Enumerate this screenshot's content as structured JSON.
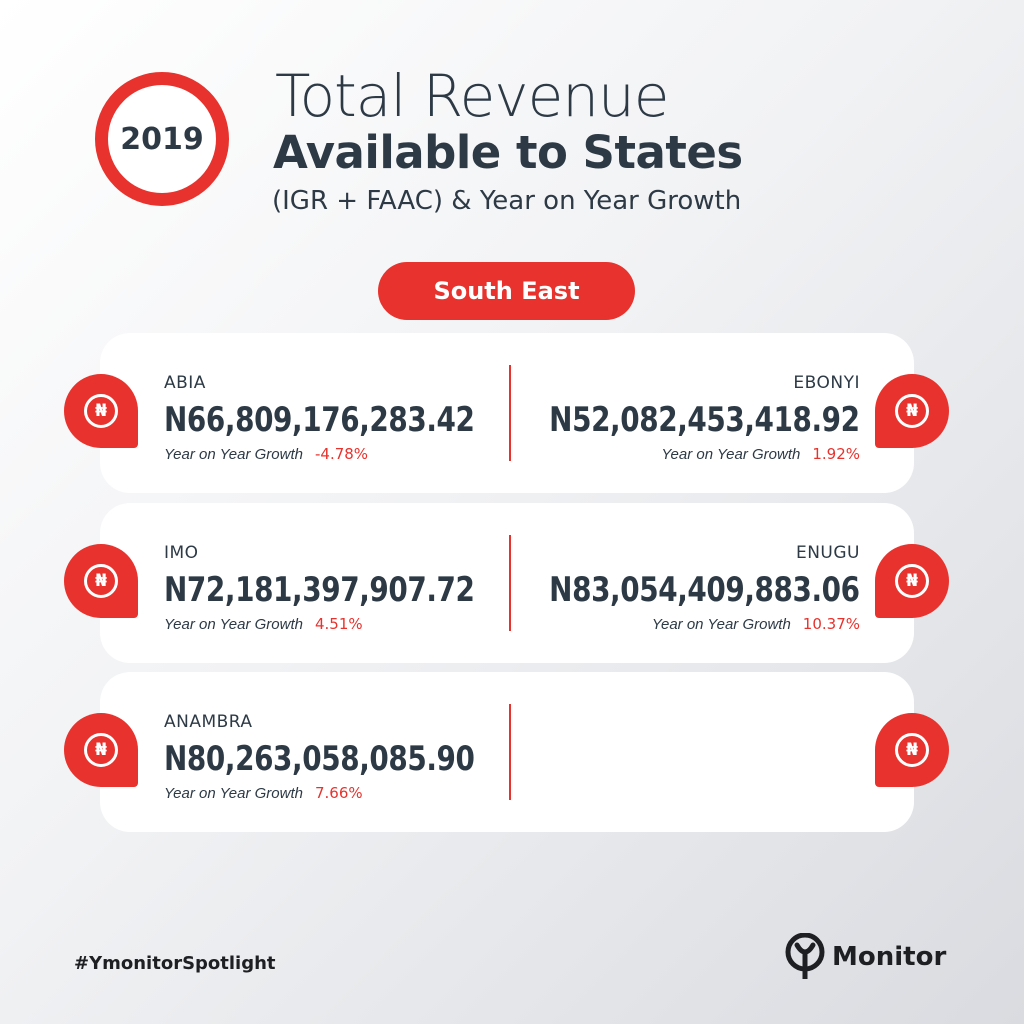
{
  "header": {
    "year": "2019",
    "title_line1": "Total Revenue",
    "title_line2": "Available to States",
    "title_line3": "(IGR + FAAC) & Year on Year Growth"
  },
  "region": "South East",
  "currency_symbol": "₦",
  "states": [
    {
      "name": "ABIA",
      "amount": "N66,809,176,283.42",
      "growth_label": "Year on Year Growth",
      "growth": "-4.78%"
    },
    {
      "name": "EBONYI",
      "amount": "N52,082,453,418.92",
      "growth_label": "Year on Year Growth",
      "growth": "1.92%"
    },
    {
      "name": "IMO",
      "amount": "N72,181,397,907.72",
      "growth_label": "Year on Year Growth",
      "growth": "4.51%"
    },
    {
      "name": "ENUGU",
      "amount": "N83,054,409,883.06",
      "growth_label": "Year on Year Growth",
      "growth": "10.37%"
    },
    {
      "name": "ANAMBRA",
      "amount": "N80,263,058,085.90",
      "growth_label": "Year on Year Growth",
      "growth": "7.66%"
    }
  ],
  "footer": {
    "hashtag": "#YmonitorSpotlight",
    "brand": "Monitor"
  },
  "colors": {
    "accent": "#e8322d",
    "text": "#2d3a46"
  },
  "icons": [
    "naira-pin-icon",
    "ymonitor-logo-icon"
  ]
}
